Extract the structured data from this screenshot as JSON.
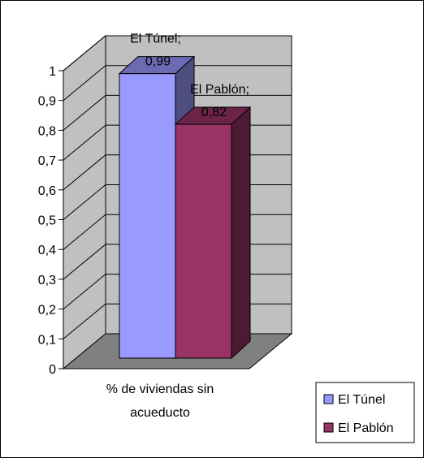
{
  "chart_data": {
    "type": "bar",
    "style": "3d-clustered",
    "categories": [
      "% de viviendas sin acueducto"
    ],
    "category_label_lines": [
      "% de viviendas sin",
      "acueducto"
    ],
    "series": [
      {
        "name": "El Túnel",
        "values": [
          0.99
        ],
        "color": "#9999FF",
        "data_label_lines": [
          "El Túnel;",
          "0,99"
        ]
      },
      {
        "name": "El Pablón",
        "values": [
          0.82
        ],
        "color": "#993366",
        "data_label_lines": [
          "El Pablón;",
          "0,82"
        ]
      }
    ],
    "y_ticks": [
      "0",
      "0,1",
      "0,2",
      "0,3",
      "0,4",
      "0,5",
      "0,6",
      "0,7",
      "0,8",
      "0,9",
      "1"
    ],
    "ylim": [
      0,
      1
    ],
    "grid": true,
    "legend_position": "bottom-right",
    "wall_color": "#C0C0C0",
    "floor_color": "#808080"
  }
}
